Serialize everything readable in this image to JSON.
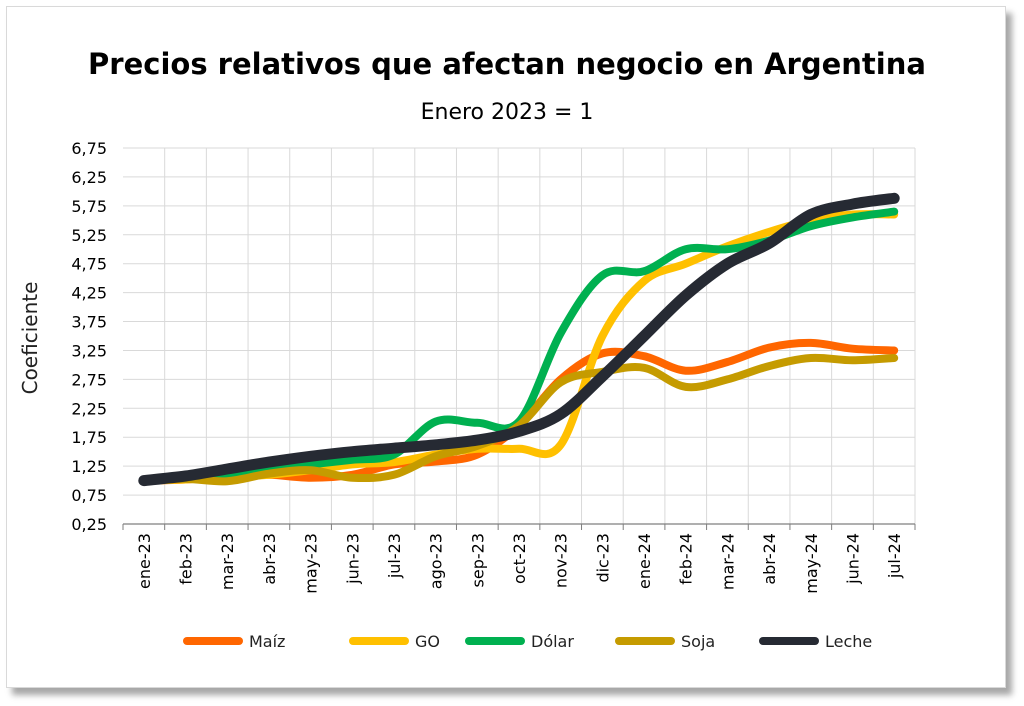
{
  "chart_data": {
    "type": "line",
    "title": "Precios relativos que afectan negocio en Argentina",
    "subtitle": "Enero 2023 = 1",
    "ylabel": "Coeficiente",
    "xlabel": "",
    "ylim": [
      0.25,
      6.75
    ],
    "yticks": [
      "0,25",
      "0,75",
      "1,25",
      "1,75",
      "2,25",
      "2,75",
      "3,25",
      "3,75",
      "4,25",
      "4,75",
      "5,25",
      "5,75",
      "6,25",
      "6,75"
    ],
    "categories": [
      "ene-23",
      "feb-23",
      "mar-23",
      "abr-23",
      "may-23",
      "jun-23",
      "jul-23",
      "ago-23",
      "sep-23",
      "oct-23",
      "nov-23",
      "dic-23",
      "ene-24",
      "feb-24",
      "mar-24",
      "abr-24",
      "may-24",
      "jun-24",
      "jul-24"
    ],
    "grid": true,
    "legend_position": "bottom",
    "series": [
      {
        "name": "Maíz",
        "color": "#ff6600",
        "values": [
          1.0,
          1.02,
          1.08,
          1.1,
          1.05,
          1.1,
          1.28,
          1.33,
          1.45,
          1.95,
          2.75,
          3.2,
          3.15,
          2.9,
          3.05,
          3.3,
          3.38,
          3.28,
          3.25
        ]
      },
      {
        "name": "GO",
        "color": "#ffc000",
        "values": [
          1.0,
          1.02,
          1.06,
          1.1,
          1.18,
          1.28,
          1.32,
          1.45,
          1.55,
          1.55,
          1.62,
          3.5,
          4.45,
          4.75,
          5.05,
          5.3,
          5.5,
          5.6,
          5.6
        ]
      },
      {
        "name": "Dólar",
        "color": "#00b050",
        "values": [
          1.0,
          1.06,
          1.12,
          1.2,
          1.28,
          1.36,
          1.45,
          2.02,
          2.0,
          2.02,
          3.55,
          4.55,
          4.62,
          5.0,
          5.0,
          5.15,
          5.4,
          5.55,
          5.65
        ]
      },
      {
        "name": "Soja",
        "color": "#c59b00",
        "values": [
          1.0,
          1.03,
          0.99,
          1.12,
          1.18,
          1.05,
          1.1,
          1.42,
          1.6,
          1.95,
          2.7,
          2.88,
          2.95,
          2.62,
          2.75,
          2.98,
          3.12,
          3.08,
          3.12
        ]
      },
      {
        "name": "Leche",
        "color": "#262a33",
        "values": [
          1.0,
          1.08,
          1.2,
          1.32,
          1.42,
          1.5,
          1.56,
          1.62,
          1.7,
          1.85,
          2.15,
          2.8,
          3.5,
          4.2,
          4.75,
          5.1,
          5.6,
          5.78,
          5.88
        ]
      }
    ]
  }
}
